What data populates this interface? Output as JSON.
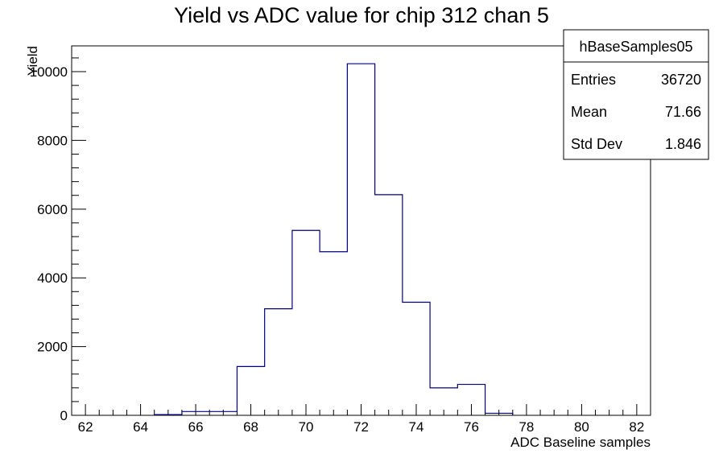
{
  "chart_data": {
    "type": "bar",
    "title": "Yield vs ADC value for chip 312 chan 5",
    "xlabel": "ADC Baseline samples",
    "ylabel": "Yield",
    "xlim": [
      61.5,
      82.5
    ],
    "ylim": [
      0,
      10750
    ],
    "grid": false,
    "x_ticks": [
      62,
      64,
      66,
      68,
      70,
      72,
      74,
      76,
      78,
      80,
      82
    ],
    "y_ticks": [
      0,
      2000,
      4000,
      6000,
      8000,
      10000
    ],
    "bin_edges": [
      64.5,
      65.5,
      66.5,
      67.5,
      68.5,
      69.5,
      70.5,
      71.5,
      72.5,
      73.5,
      74.5,
      75.5,
      76.5,
      77.5
    ],
    "values": [
      20,
      110,
      110,
      1420,
      3100,
      5380,
      4760,
      10230,
      6420,
      3290,
      800,
      900,
      60
    ],
    "line_color": "#000080",
    "stats": {
      "name": "hBaseSamples05",
      "rows": [
        {
          "label": "Entries",
          "value": "36720"
        },
        {
          "label": "Mean",
          "value": "71.66"
        },
        {
          "label": "Std Dev",
          "value": "1.846"
        }
      ]
    }
  }
}
